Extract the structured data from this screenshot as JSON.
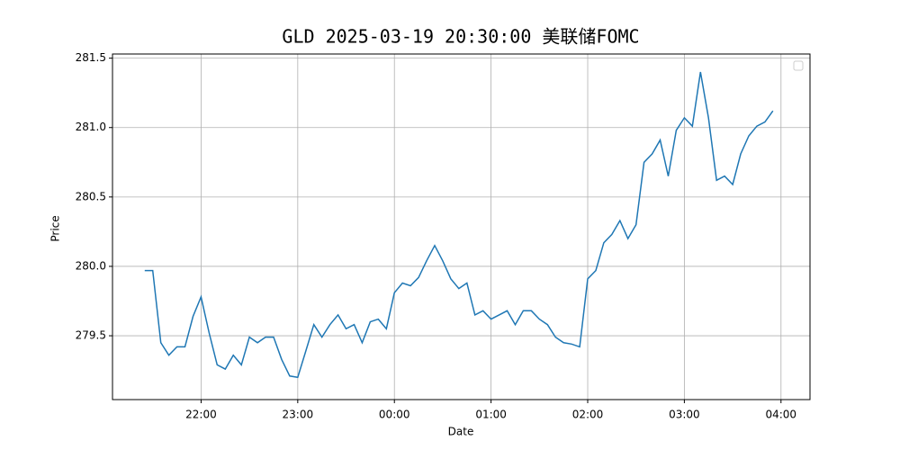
{
  "chart_data": {
    "type": "line",
    "title": "GLD 2025-03-19 20:30:00 美联储FOMC",
    "x_label": "Date",
    "y_label": "Price",
    "x": [
      "21:25",
      "21:30",
      "21:35",
      "21:40",
      "21:45",
      "21:50",
      "21:55",
      "22:00",
      "22:05",
      "22:10",
      "22:15",
      "22:20",
      "22:25",
      "22:30",
      "22:35",
      "22:40",
      "22:45",
      "22:50",
      "22:55",
      "23:00",
      "23:05",
      "23:10",
      "23:15",
      "23:20",
      "23:25",
      "23:30",
      "23:35",
      "23:40",
      "23:45",
      "23:50",
      "23:55",
      "00:00",
      "00:05",
      "00:10",
      "00:15",
      "00:20",
      "00:25",
      "00:30",
      "00:35",
      "00:40",
      "00:45",
      "00:50",
      "00:55",
      "01:00",
      "01:05",
      "01:10",
      "01:15",
      "01:20",
      "01:25",
      "01:30",
      "01:35",
      "01:40",
      "01:45",
      "01:50",
      "01:55",
      "02:00",
      "02:05",
      "02:10",
      "02:15",
      "02:20",
      "02:25",
      "02:30",
      "02:35",
      "02:40",
      "02:45",
      "02:50",
      "02:55",
      "03:00",
      "03:05",
      "03:10",
      "03:15",
      "03:20",
      "03:25",
      "03:30",
      "03:35",
      "03:40",
      "03:45",
      "03:50",
      "03:55"
    ],
    "series": [
      {
        "name": "Price",
        "color": "#1f77b4",
        "values": [
          279.97,
          279.97,
          279.45,
          279.36,
          279.42,
          279.42,
          279.64,
          279.78,
          279.52,
          279.29,
          279.26,
          279.36,
          279.29,
          279.49,
          279.45,
          279.49,
          279.49,
          279.33,
          279.21,
          279.2,
          279.39,
          279.58,
          279.49,
          279.58,
          279.65,
          279.55,
          279.58,
          279.45,
          279.6,
          279.62,
          279.55,
          279.81,
          279.88,
          279.86,
          279.92,
          280.04,
          280.15,
          280.04,
          279.91,
          279.84,
          279.88,
          279.65,
          279.68,
          279.62,
          279.65,
          279.68,
          279.58,
          279.68,
          279.68,
          279.62,
          279.58,
          279.49,
          279.45,
          279.44,
          279.42,
          279.91,
          279.97,
          280.17,
          280.23,
          280.33,
          280.2,
          280.3,
          280.75,
          280.81,
          280.91,
          280.65,
          280.98,
          281.07,
          281.01,
          281.4,
          281.07,
          280.62,
          280.65,
          280.59,
          280.81,
          280.94,
          281.01,
          281.04,
          281.12
        ]
      }
    ],
    "xlim": [
      "21:05",
      "04:18"
    ],
    "xticks": [
      "22:00",
      "23:00",
      "00:00",
      "01:00",
      "02:00",
      "03:00",
      "04:00"
    ],
    "ylim": [
      279.04,
      281.53
    ],
    "yticks": [
      {
        "value": 279.5,
        "label": "279.5"
      },
      {
        "value": 280,
        "label": "280.0"
      },
      {
        "value": 280.5,
        "label": "280.5"
      },
      {
        "value": 281,
        "label": "281.0"
      },
      {
        "value": 281.5,
        "label": "281.5"
      }
    ],
    "grid": true
  }
}
